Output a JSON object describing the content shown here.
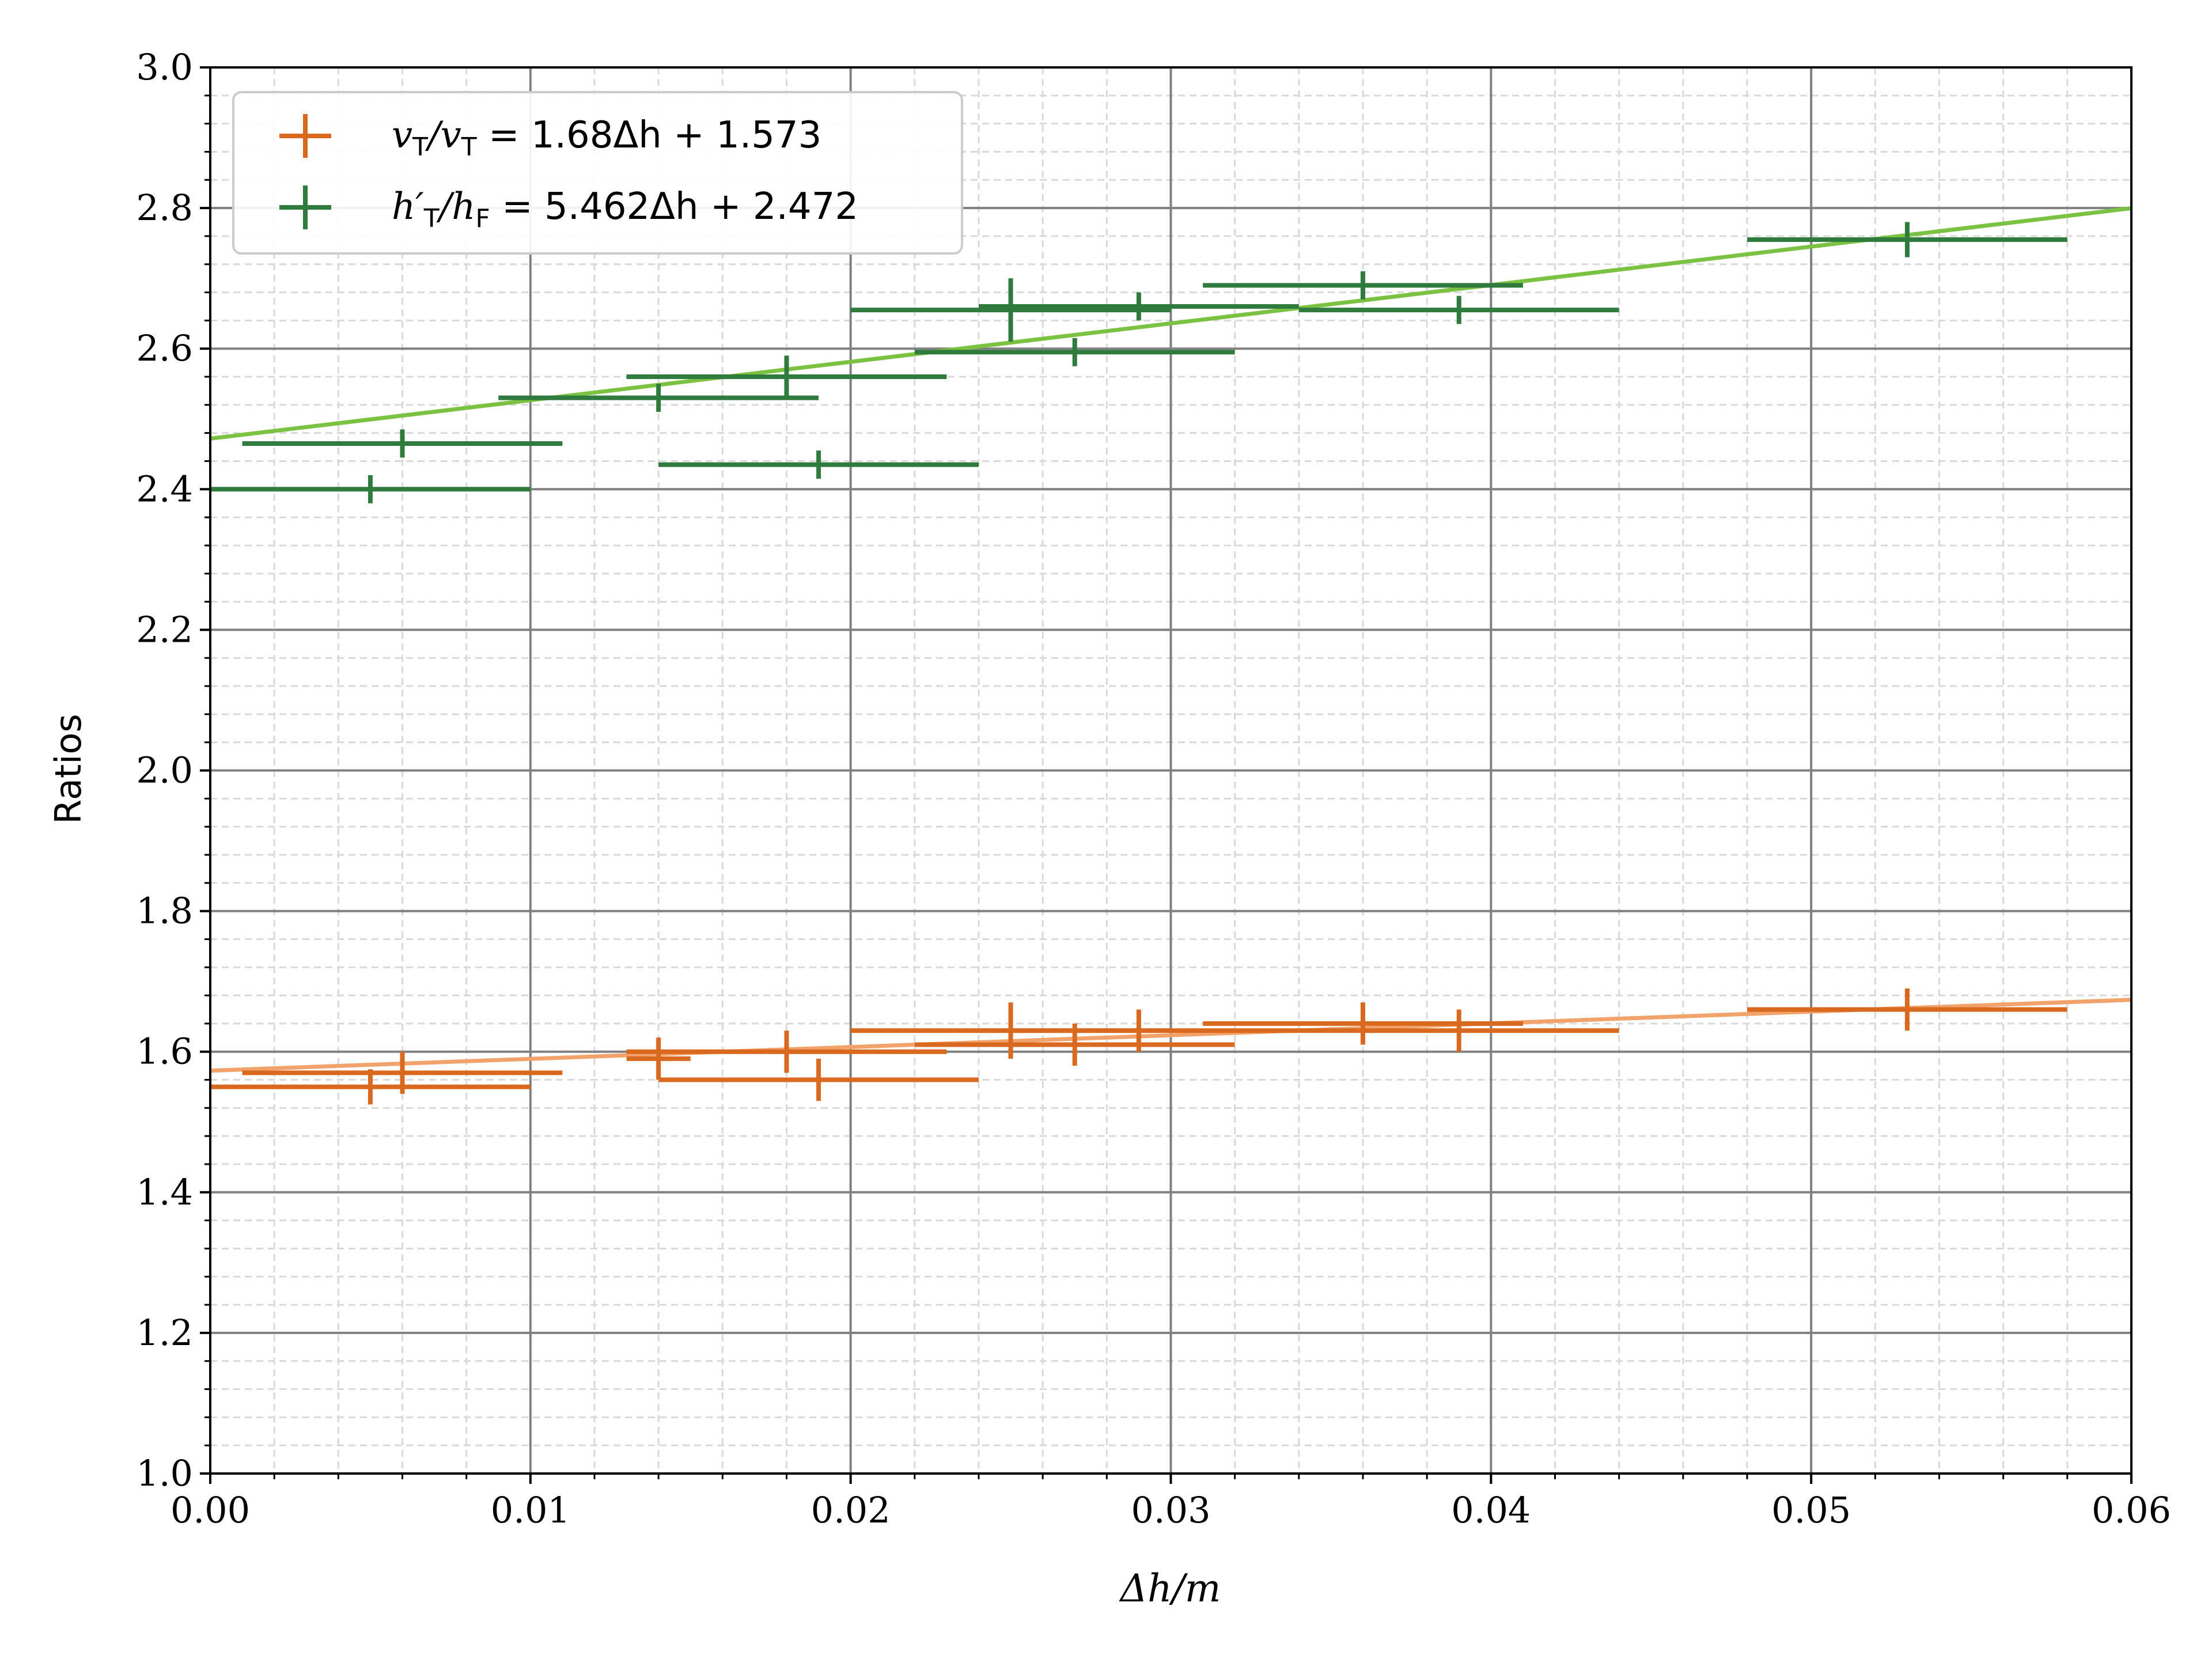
{
  "chart_data": {
    "type": "scatter",
    "xlabel": "Δh/m",
    "ylabel": "Ratios",
    "xlim": [
      0,
      0.06
    ],
    "ylim": [
      1.0,
      3.0
    ],
    "x_ticks": [
      0.0,
      0.01,
      0.02,
      0.03,
      0.04,
      0.05,
      0.06
    ],
    "x_tick_labels": [
      "0.00",
      "0.01",
      "0.02",
      "0.03",
      "0.04",
      "0.05",
      "0.06"
    ],
    "y_ticks": [
      1.0,
      1.2,
      1.4,
      1.6,
      1.8,
      2.0,
      2.2,
      2.4,
      2.6,
      2.8,
      3.0
    ],
    "y_tick_labels": [
      "1.0",
      "1.2",
      "1.4",
      "1.6",
      "1.8",
      "2.0",
      "2.2",
      "2.4",
      "2.6",
      "2.8",
      "3.0"
    ],
    "x_minor_step": 0.002,
    "y_minor_step": 0.04,
    "grid": true,
    "legend_position": "top-left",
    "series": [
      {
        "name": "v_T/v_T = 1.68Δh + 1.573",
        "color": "#d9691f",
        "fit_color": "#f2a36b",
        "fit": {
          "slope": 1.68,
          "intercept": 1.573
        },
        "points": [
          {
            "x": 0.005,
            "y": 1.55,
            "xerr": 0.005,
            "yerr": 0.025
          },
          {
            "x": 0.006,
            "y": 1.57,
            "xerr": 0.005,
            "yerr": 0.03
          },
          {
            "x": 0.014,
            "y": 1.59,
            "xerr": 0.001,
            "yerr": 0.03
          },
          {
            "x": 0.018,
            "y": 1.6,
            "xerr": 0.005,
            "yerr": 0.03
          },
          {
            "x": 0.019,
            "y": 1.56,
            "xerr": 0.005,
            "yerr": 0.03
          },
          {
            "x": 0.025,
            "y": 1.63,
            "xerr": 0.005,
            "yerr": 0.04
          },
          {
            "x": 0.027,
            "y": 1.61,
            "xerr": 0.005,
            "yerr": 0.03
          },
          {
            "x": 0.029,
            "y": 1.63,
            "xerr": 0.005,
            "yerr": 0.03
          },
          {
            "x": 0.036,
            "y": 1.64,
            "xerr": 0.005,
            "yerr": 0.03
          },
          {
            "x": 0.039,
            "y": 1.63,
            "xerr": 0.005,
            "yerr": 0.03
          },
          {
            "x": 0.053,
            "y": 1.66,
            "xerr": 0.005,
            "yerr": 0.03
          }
        ]
      },
      {
        "name": "h′_T/h_F = 5.462Δh + 2.472",
        "color": "#2f7a3d",
        "fit_color": "#7cc242",
        "fit": {
          "slope": 5.462,
          "intercept": 2.472
        },
        "points": [
          {
            "x": 0.005,
            "y": 2.4,
            "xerr": 0.005,
            "yerr": 0.02
          },
          {
            "x": 0.006,
            "y": 2.465,
            "xerr": 0.005,
            "yerr": 0.02
          },
          {
            "x": 0.014,
            "y": 2.53,
            "xerr": 0.005,
            "yerr": 0.02
          },
          {
            "x": 0.018,
            "y": 2.56,
            "xerr": 0.005,
            "yerr": 0.03
          },
          {
            "x": 0.019,
            "y": 2.435,
            "xerr": 0.005,
            "yerr": 0.02
          },
          {
            "x": 0.025,
            "y": 2.655,
            "xerr": 0.005,
            "yerr": 0.045
          },
          {
            "x": 0.027,
            "y": 2.595,
            "xerr": 0.005,
            "yerr": 0.02
          },
          {
            "x": 0.029,
            "y": 2.66,
            "xerr": 0.005,
            "yerr": 0.02
          },
          {
            "x": 0.036,
            "y": 2.69,
            "xerr": 0.005,
            "yerr": 0.02
          },
          {
            "x": 0.039,
            "y": 2.655,
            "xerr": 0.005,
            "yerr": 0.02
          },
          {
            "x": 0.053,
            "y": 2.755,
            "xerr": 0.005,
            "yerr": 0.025
          }
        ]
      }
    ]
  },
  "legend": {
    "entries": [
      {
        "pre": "v",
        "pre_sub": "T",
        "mid": "/v",
        "mid_sub": "T",
        "equation": " = 1.68Δh + 1.573"
      },
      {
        "pre": "h′",
        "pre_sub": "T",
        "mid": "/h",
        "mid_sub": "F",
        "equation": " = 5.462Δh + 2.472"
      }
    ]
  }
}
